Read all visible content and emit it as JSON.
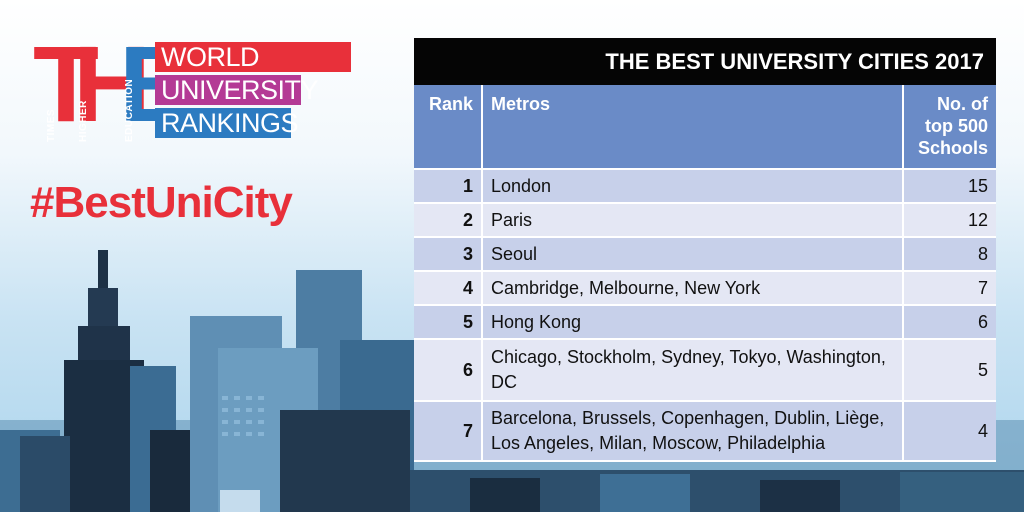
{
  "logo": {
    "letters": [
      "T",
      "H",
      "E"
    ],
    "letter_colors": [
      "#e8303a",
      "#e8303a",
      "#2c7bc1"
    ],
    "vertical_words": [
      "TIMES",
      "HIGHER",
      "EDUCATION"
    ],
    "bars": [
      {
        "text": "WORLD",
        "color": "#e8303a"
      },
      {
        "text": "UNIVERSITY",
        "color": "#b43a95"
      },
      {
        "text": "RANKINGS",
        "color": "#2c7bc1"
      }
    ]
  },
  "hashtag": "#BestUniCity",
  "table": {
    "title": "THE BEST UNIVERSITY CITIES 2017",
    "headers": {
      "rank": "Rank",
      "metros": "Metros",
      "schools": "No. of top 500 Schools"
    },
    "rows": [
      {
        "rank": "1",
        "metros": "London",
        "schools": "15"
      },
      {
        "rank": "2",
        "metros": "Paris",
        "schools": "12"
      },
      {
        "rank": "3",
        "metros": "Seoul",
        "schools": "8"
      },
      {
        "rank": "4",
        "metros": "Cambridge, Melbourne, New York",
        "schools": "7"
      },
      {
        "rank": "5",
        "metros": "Hong Kong",
        "schools": "6"
      },
      {
        "rank": "6",
        "metros": "Chicago, Stockholm, Sydney, Tokyo, Washington, DC",
        "schools": "5"
      },
      {
        "rank": "7",
        "metros": "Barcelona, Brussels, Copenhagen, Dublin, Liège, Los Angeles, Milan, Moscow, Philadelphia",
        "schools": "4"
      }
    ]
  },
  "colors": {
    "header_black": "#050505",
    "header_blue": "#6a8bc7",
    "row_dark": "#c7d0ea",
    "row_light": "#e4e7f4",
    "accent_red": "#e8303a"
  }
}
